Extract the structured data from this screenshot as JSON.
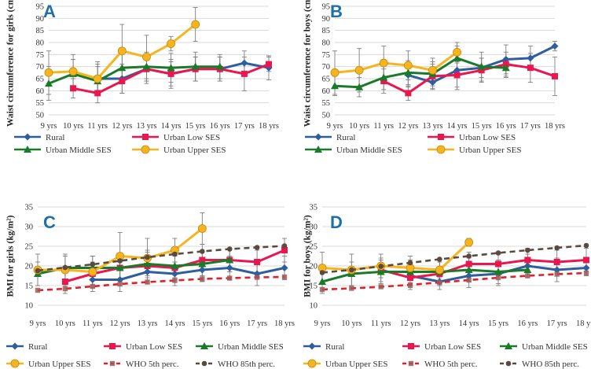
{
  "colors": {
    "rural": "#2e5e9e",
    "low": "#e8174f",
    "middle": "#1a7a2a",
    "upper": "#f6b51e",
    "who5": "#e0202a",
    "who85": "#5a4a40",
    "letter": "#1f6fa8",
    "grid": "#d9d9d9",
    "errbar": "#7f7f7f"
  },
  "legend_labels": {
    "rural": "Rural",
    "low": "Urban Low SES",
    "middle": "Urban Middle SES",
    "upper": "Urban Upper SES",
    "who5": "WHO 5th perc.",
    "who85": "WHO 85th perc."
  },
  "chart_data": [
    {
      "panel": "A",
      "type": "line",
      "title": "",
      "ylabel": "Waist circumference for girls (cm)",
      "ylim": [
        50,
        95
      ],
      "yticks": [
        50,
        55,
        60,
        65,
        70,
        75,
        80,
        85,
        90,
        95
      ],
      "categories": [
        "9 yrs",
        "10 yrs",
        "11 yrs",
        "12 yrs",
        "13 yrs",
        "14 yrs",
        "15 yrs",
        "16 yrs",
        "17 yrs",
        "18 yrs"
      ],
      "grid": true,
      "legend": "bottom",
      "series": [
        {
          "key": "rural",
          "values": [
            null,
            null,
            65,
            65,
            69,
            67,
            69,
            69,
            71.5,
            69.5
          ],
          "err": [
            null,
            null,
            6,
            6,
            6,
            6,
            5,
            5,
            5,
            5
          ]
        },
        {
          "key": "low",
          "values": [
            null,
            61,
            59,
            64,
            69,
            67,
            69,
            69,
            67,
            71
          ],
          "err": [
            null,
            4,
            4,
            5,
            5,
            5,
            5,
            5,
            7,
            3
          ]
        },
        {
          "key": "middle",
          "values": [
            63,
            67,
            64,
            69.5,
            70,
            69.5,
            70,
            70,
            null,
            null
          ],
          "err": [
            7,
            6,
            6,
            6,
            6,
            6,
            6,
            5,
            null,
            null
          ]
        },
        {
          "key": "upper",
          "values": [
            67.5,
            68,
            65,
            76.5,
            74,
            79.5,
            87.5,
            null,
            null,
            null
          ],
          "err": [
            9,
            7,
            7,
            11,
            9,
            3,
            7,
            null,
            null,
            null
          ]
        }
      ]
    },
    {
      "panel": "B",
      "type": "line",
      "title": "",
      "ylabel": "Waist circumference for boys (cm)",
      "ylim": [
        50,
        95
      ],
      "yticks": [
        50,
        55,
        60,
        65,
        70,
        75,
        80,
        85,
        90,
        95
      ],
      "categories": [
        "9 yrs",
        "10 yrs",
        "11 yrs",
        "12 yrs",
        "13 yrs",
        "14 yrs",
        "15 yrs",
        "16 yrs",
        "17 yrs",
        "18 yrs"
      ],
      "grid": true,
      "legend": "bottom",
      "series": [
        {
          "key": "rural",
          "values": [
            null,
            null,
            null,
            66.5,
            63.5,
            68.5,
            69.5,
            73,
            73.5,
            78.5
          ],
          "err": [
            null,
            null,
            null,
            5,
            3,
            8,
            4,
            6,
            5,
            2
          ]
        },
        {
          "key": "low",
          "values": [
            null,
            null,
            64,
            59,
            66,
            66.5,
            68.5,
            71,
            69.5,
            66
          ],
          "err": [
            null,
            null,
            5,
            3,
            5,
            5,
            5,
            5,
            6,
            8
          ]
        },
        {
          "key": "middle",
          "values": [
            62,
            61.5,
            65.5,
            67.5,
            67,
            73.5,
            70,
            69.5,
            null,
            null
          ],
          "err": [
            4,
            4,
            5,
            5,
            5,
            5,
            6,
            4,
            null,
            null
          ]
        },
        {
          "key": "upper",
          "values": [
            67.5,
            68.5,
            71.5,
            70.5,
            68.5,
            76,
            null,
            null,
            null,
            null
          ],
          "err": [
            9,
            9,
            7,
            6,
            5,
            4,
            null,
            null,
            null,
            null
          ]
        }
      ]
    },
    {
      "panel": "C",
      "type": "line",
      "title": "",
      "ylabel": "BMI for girls (kg/m²)",
      "ylim": [
        10,
        35
      ],
      "yticks": [
        10,
        15,
        20,
        25,
        30,
        35
      ],
      "categories": [
        "9 yrs",
        "10 yrs",
        "11 yrs",
        "12 yrs",
        "13 yrs",
        "14 yrs",
        "15 yrs",
        "16 yrs",
        "17 yrs",
        "18 yrs"
      ],
      "grid": true,
      "legend": "bottom",
      "series": [
        {
          "key": "rural",
          "values": [
            null,
            null,
            16.5,
            16.5,
            18.5,
            18,
            19,
            19.5,
            18,
            19.5
          ],
          "err": [
            null,
            null,
            3,
            3,
            3,
            3,
            3,
            3,
            3,
            3
          ]
        },
        {
          "key": "low",
          "values": [
            null,
            16,
            18,
            19.5,
            20,
            19.5,
            21.5,
            21.5,
            21,
            24
          ],
          "err": [
            null,
            3,
            3,
            3,
            4,
            3,
            4,
            3,
            3,
            3
          ]
        },
        {
          "key": "middle",
          "values": [
            18,
            19.5,
            19.5,
            19.5,
            20.5,
            20,
            20.5,
            21.5,
            null,
            null
          ],
          "err": [
            3,
            3,
            3,
            3,
            3,
            3,
            3,
            3,
            null,
            null
          ]
        },
        {
          "key": "upper",
          "values": [
            19,
            19,
            18.5,
            22.5,
            22,
            24,
            29.5,
            null,
            null,
            null
          ],
          "err": [
            4,
            4,
            4,
            6,
            5,
            3,
            4,
            null,
            null,
            null
          ]
        },
        {
          "key": "who5",
          "style": "dashed",
          "values": [
            13.8,
            14.2,
            14.8,
            15.4,
            15.9,
            16.3,
            16.7,
            16.9,
            17.1,
            17.2
          ]
        },
        {
          "key": "who85",
          "style": "dashed",
          "values": [
            18.8,
            19.6,
            20.4,
            21.3,
            22.2,
            23.0,
            23.7,
            24.3,
            24.7,
            25.1
          ]
        }
      ]
    },
    {
      "panel": "D",
      "type": "line",
      "title": "",
      "ylabel": "BMI for boys (kg/m²)",
      "ylim": [
        10,
        35
      ],
      "yticks": [
        10,
        15,
        20,
        25,
        30,
        35
      ],
      "categories": [
        "9 yrs",
        "10 yrs",
        "11 yrs",
        "12 yrs",
        "13 yrs",
        "14 yrs",
        "15 yrs",
        "16 yrs",
        "17 yrs",
        "18 yrs"
      ],
      "grid": true,
      "legend": "bottom",
      "series": [
        {
          "key": "rural",
          "values": [
            null,
            null,
            null,
            17.5,
            16,
            17.5,
            18,
            20,
            19,
            19.5
          ],
          "err": [
            null,
            null,
            null,
            3,
            2,
            3,
            3,
            3,
            3,
            2
          ]
        },
        {
          "key": "low",
          "values": [
            null,
            null,
            19,
            17,
            18,
            20.5,
            20.5,
            21.5,
            21,
            21.5
          ],
          "err": [
            null,
            null,
            3,
            3,
            3,
            3,
            3,
            3,
            3,
            3
          ]
        },
        {
          "key": "middle",
          "values": [
            16,
            18,
            18.5,
            18.5,
            18.5,
            19,
            18.5,
            19,
            null,
            null
          ],
          "err": [
            3,
            3,
            3,
            3,
            3,
            3,
            3,
            2,
            null,
            null
          ]
        },
        {
          "key": "upper",
          "values": [
            19.5,
            19,
            20,
            19.5,
            19,
            26,
            null,
            null,
            null,
            null
          ],
          "err": [
            4,
            4,
            3,
            3,
            2,
            1,
            null,
            null,
            null,
            null
          ]
        },
        {
          "key": "who5",
          "style": "dashed",
          "values": [
            14.0,
            14.3,
            14.7,
            15.2,
            15.8,
            16.4,
            17.0,
            17.5,
            17.9,
            18.2
          ]
        },
        {
          "key": "who85",
          "style": "dashed",
          "values": [
            18.3,
            19.0,
            19.9,
            20.8,
            21.7,
            22.5,
            23.3,
            24.0,
            24.6,
            25.2
          ]
        }
      ]
    }
  ]
}
